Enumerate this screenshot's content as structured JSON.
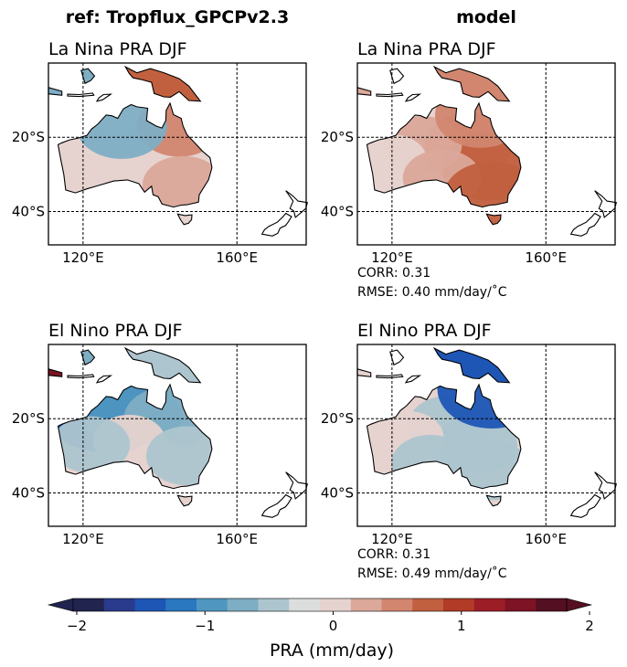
{
  "figure": {
    "column_titles": [
      "ref: Tropflux_GPCPv2.3",
      "model"
    ]
  },
  "chart_data": [
    {
      "type": "heatmap",
      "title": "La Nina PRA DJF",
      "column": 0,
      "row": 0,
      "x_ticks": [
        "120°E",
        "160°E"
      ],
      "y_ticks": [
        "20°S",
        "40°S"
      ],
      "x_range": [
        111,
        178
      ],
      "y_range": [
        -49,
        0
      ],
      "grid": true,
      "regions": [
        {
          "lon": 128,
          "lat": -19,
          "value": -0.2
        },
        {
          "lon": 140,
          "lat": -22,
          "value": 0.2
        },
        {
          "lon": 145,
          "lat": -17,
          "value": 0.5
        },
        {
          "lon": 122,
          "lat": -25,
          "value": 0.1
        },
        {
          "lon": 133,
          "lat": -30,
          "value": 0.2
        },
        {
          "lon": 146,
          "lat": -33,
          "value": 0.4
        },
        {
          "lon": 122,
          "lat": -33,
          "value": 0.1
        },
        {
          "lon": 130,
          "lat": -17,
          "value": -0.7
        }
      ],
      "stats": []
    },
    {
      "type": "heatmap",
      "title": "La Nina PRA DJF",
      "column": 1,
      "row": 0,
      "x_ticks": [
        "120°E",
        "160°E"
      ],
      "y_ticks": [
        "20°S",
        "40°S"
      ],
      "x_range": [
        111,
        178
      ],
      "y_range": [
        -49,
        0
      ],
      "grid": true,
      "regions": [
        {
          "lon": 140,
          "lat": -22,
          "value": 0.6
        },
        {
          "lon": 145,
          "lat": -28,
          "value": 0.8
        },
        {
          "lon": 128,
          "lat": -22,
          "value": 0.3
        },
        {
          "lon": 120,
          "lat": -26,
          "value": 0.0
        },
        {
          "lon": 133,
          "lat": -31,
          "value": 0.3
        },
        {
          "lon": 143,
          "lat": -14,
          "value": 0.7
        },
        {
          "lon": 146,
          "lat": -36,
          "value": 0.9
        }
      ],
      "stats": [
        "CORR: 0.31",
        "RMSE: 0.40 mm/day/˚C"
      ]
    },
    {
      "type": "heatmap",
      "title": "El Nino PRA DJF",
      "column": 0,
      "row": 1,
      "x_ticks": [
        "120°E",
        "160°E"
      ],
      "y_ticks": [
        "20°S",
        "40°S"
      ],
      "x_range": [
        111,
        178
      ],
      "y_range": [
        -49,
        0
      ],
      "grid": true,
      "regions": [
        {
          "lon": 125,
          "lat": -18,
          "value": -1.4
        },
        {
          "lon": 133,
          "lat": -19,
          "value": -0.9
        },
        {
          "lon": 142,
          "lat": -20,
          "value": -0.6
        },
        {
          "lon": 132,
          "lat": -26,
          "value": 0.1
        },
        {
          "lon": 140,
          "lat": -33,
          "value": 0.0
        },
        {
          "lon": 147,
          "lat": -30,
          "value": -0.4
        },
        {
          "lon": 122,
          "lat": -27,
          "value": -0.3
        }
      ],
      "stats": []
    },
    {
      "type": "heatmap",
      "title": "El Nino PRA DJF",
      "column": 1,
      "row": 1,
      "x_ticks": [
        "120°E",
        "160°E"
      ],
      "y_ticks": [
        "20°S",
        "40°S"
      ],
      "x_range": [
        111,
        178
      ],
      "y_range": [
        -49,
        0
      ],
      "grid": true,
      "regions": [
        {
          "lon": 135,
          "lat": -22,
          "value": -0.5
        },
        {
          "lon": 142,
          "lat": -27,
          "value": -0.4
        },
        {
          "lon": 124,
          "lat": -25,
          "value": 0.1
        },
        {
          "lon": 130,
          "lat": -32,
          "value": -0.3
        },
        {
          "lon": 146,
          "lat": -34,
          "value": -0.4
        },
        {
          "lon": 146,
          "lat": -12,
          "value": -1.3
        }
      ],
      "stats": [
        "CORR: 0.31",
        "RMSE: 0.49 mm/day/˚C"
      ]
    }
  ],
  "colorbar": {
    "label": "PRA (mm/day)",
    "range": [
      -2,
      2
    ],
    "ticks": [
      {
        "value": -2,
        "label": "−2"
      },
      {
        "value": -1,
        "label": "−1"
      },
      {
        "value": 0,
        "label": "0"
      },
      {
        "value": 1,
        "label": "1"
      },
      {
        "value": 2,
        "label": "2"
      }
    ],
    "colors": [
      "#21244f",
      "#2a3a8c",
      "#1e56b5",
      "#2a78c0",
      "#4f97c0",
      "#7eaec4",
      "#adc5cf",
      "#dcdede",
      "#e6d3cf",
      "#dba89a",
      "#d2866f",
      "#c1603f",
      "#b13b27",
      "#9d1d26",
      "#7d1324",
      "#541022"
    ],
    "extend": "both"
  }
}
